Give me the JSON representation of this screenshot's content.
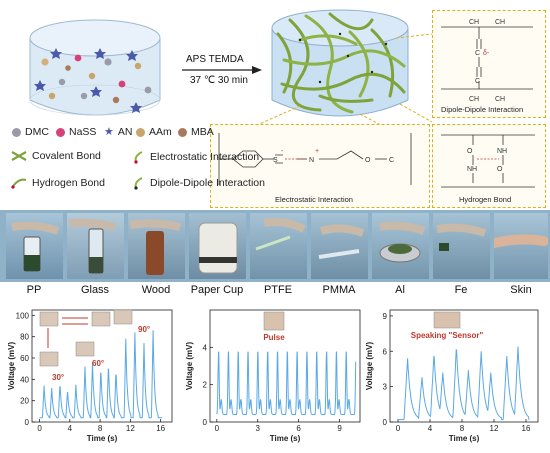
{
  "reaction": {
    "reagents": "APS  TEMDA",
    "conditions": "37 ℃  30 min"
  },
  "legend": {
    "monomers": [
      {
        "label": "DMC",
        "color": "#9a9aa8"
      },
      {
        "label": "NaSS",
        "color": "#d6417a"
      },
      {
        "label": "AN",
        "color": "#4a5aa8"
      },
      {
        "label": "AAm",
        "color": "#c8a56a"
      },
      {
        "label": "MBA",
        "color": "#a87a5a"
      }
    ],
    "bonds": [
      {
        "label": "Covalent Bond",
        "icon": "covalent-bond-icon"
      },
      {
        "label": "Electrostatic Interaction",
        "icon": "electrostatic-icon"
      },
      {
        "label": "Hydrogen Bond",
        "icon": "hydrogen-bond-icon"
      },
      {
        "label": "Dipole-Dipole Interaction",
        "icon": "dipole-icon"
      }
    ]
  },
  "interactions": {
    "dipole": "Dipole-Dipole Interaction",
    "hydrogen": "Hydrogen Bond",
    "electrostatic": "Electrostatic Interaction"
  },
  "substrates": [
    "PP",
    "Glass",
    "Wood",
    "Paper Cup",
    "PTFE",
    "PMMA",
    "Al",
    "Fe",
    "Skin"
  ],
  "chart_data": [
    {
      "type": "line",
      "xlabel": "Time (s)",
      "ylabel": "Voltage (mV)",
      "xlim": [
        -1,
        17.5
      ],
      "ylim": [
        0,
        105
      ],
      "xticks": [
        0,
        4,
        8,
        12,
        16
      ],
      "yticks": [
        0,
        20,
        40,
        60,
        80,
        100
      ],
      "annotations": [
        "30°",
        "60°",
        "90°"
      ],
      "color": "#5aa9e6"
    },
    {
      "type": "line",
      "xlabel": "Time (s)",
      "ylabel": "Voltage (mV)",
      "title": "Pulse",
      "xlim": [
        -0.5,
        10.5
      ],
      "ylim": [
        0,
        6
      ],
      "xticks": [
        0,
        3,
        6,
        9
      ],
      "yticks": [
        0,
        2,
        4
      ],
      "color": "#5aa9e6"
    },
    {
      "type": "line",
      "xlabel": "Time (s)",
      "ylabel": "Voltage (mV)",
      "title": "Speaking \"Sensor\"",
      "xlim": [
        -1,
        17.5
      ],
      "ylim": [
        0,
        9.5
      ],
      "xticks": [
        0,
        4,
        8,
        12,
        16
      ],
      "yticks": [
        0,
        3,
        6,
        9
      ],
      "color": "#5aa9e6"
    }
  ]
}
